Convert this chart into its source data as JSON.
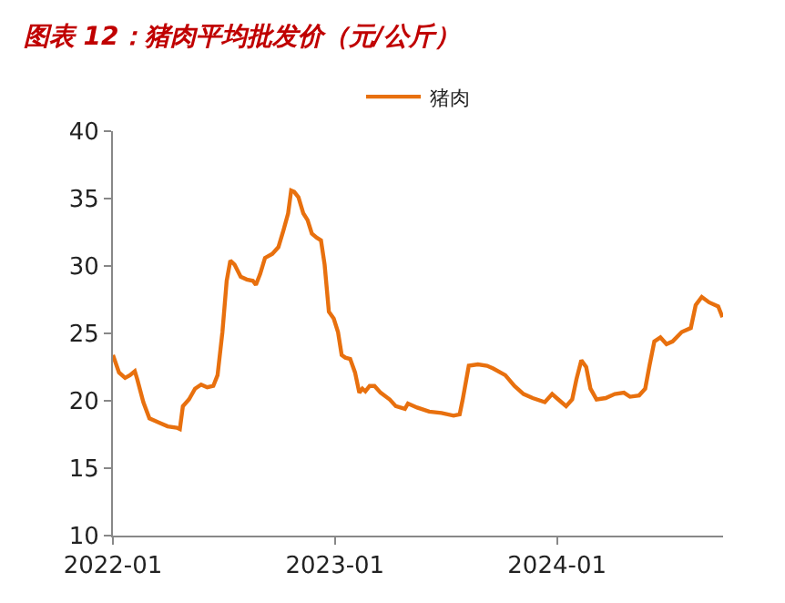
{
  "chart_data": {
    "type": "line",
    "title": "图表 12：猪肉平均批发价（元/公斤）",
    "x": [
      "2022-01-01",
      "2022-01-11",
      "2022-01-21",
      "2022-01-29",
      "2022-02-06",
      "2022-02-10",
      "2022-02-20",
      "2022-03-02",
      "2022-03-17",
      "2022-04-01",
      "2022-04-16",
      "2022-04-21",
      "2022-04-26",
      "2022-05-06",
      "2022-05-16",
      "2022-05-26",
      "2022-06-05",
      "2022-06-15",
      "2022-06-22",
      "2022-06-30",
      "2022-07-07",
      "2022-07-13",
      "2022-07-20",
      "2022-07-30",
      "2022-08-09",
      "2022-08-19",
      "2022-08-24",
      "2022-08-31",
      "2022-09-08",
      "2022-09-20",
      "2022-09-30",
      "2022-10-08",
      "2022-10-16",
      "2022-10-21",
      "2022-10-26",
      "2022-11-02",
      "2022-11-10",
      "2022-11-17",
      "2022-11-24",
      "2022-12-02",
      "2022-12-09",
      "2022-12-15",
      "2022-12-22",
      "2022-12-30",
      "2023-01-06",
      "2023-01-12",
      "2023-01-18",
      "2023-01-26",
      "2023-02-03",
      "2023-02-10",
      "2023-02-15",
      "2023-02-20",
      "2023-02-27",
      "2023-03-07",
      "2023-03-17",
      "2023-04-01",
      "2023-04-11",
      "2023-04-26",
      "2023-05-01",
      "2023-05-16",
      "2023-06-05",
      "2023-06-25",
      "2023-07-15",
      "2023-07-25",
      "2023-07-30",
      "2023-08-09",
      "2023-08-24",
      "2023-09-08",
      "2023-09-18",
      "2023-10-08",
      "2023-10-23",
      "2023-11-07",
      "2023-11-22",
      "2023-12-12",
      "2023-12-24",
      "2024-01-03",
      "2024-01-16",
      "2024-01-26",
      "2024-02-02",
      "2024-02-10",
      "2024-02-18",
      "2024-02-25",
      "2024-03-06",
      "2024-03-21",
      "2024-04-05",
      "2024-04-20",
      "2024-04-30",
      "2024-05-15",
      "2024-05-25",
      "2024-06-01",
      "2024-06-09",
      "2024-06-19",
      "2024-06-29",
      "2024-07-09",
      "2024-07-24",
      "2024-08-08",
      "2024-08-16",
      "2024-08-26",
      "2024-09-07",
      "2024-09-22",
      "2024-09-29"
    ],
    "series": [
      {
        "name": "猪肉",
        "color": "#e8700e",
        "values": [
          23.4,
          22.1,
          21.7,
          21.9,
          22.2,
          21.6,
          19.9,
          18.7,
          18.4,
          18.1,
          18.0,
          17.9,
          19.6,
          20.1,
          20.9,
          21.2,
          21.0,
          21.1,
          21.9,
          25.1,
          28.9,
          30.4,
          30.1,
          29.2,
          29.0,
          28.9,
          28.6,
          29.4,
          30.6,
          30.9,
          31.4,
          32.6,
          33.9,
          35.6,
          35.5,
          35.1,
          33.9,
          33.4,
          32.4,
          32.1,
          31.9,
          30.1,
          26.6,
          26.1,
          25.1,
          23.4,
          23.2,
          23.1,
          22.1,
          20.6,
          20.9,
          20.7,
          21.1,
          21.1,
          20.6,
          20.1,
          19.6,
          19.4,
          19.8,
          19.5,
          19.2,
          19.1,
          18.9,
          19.0,
          20.1,
          22.6,
          22.7,
          22.6,
          22.4,
          21.9,
          21.1,
          20.5,
          20.2,
          19.9,
          20.5,
          20.1,
          19.6,
          20.1,
          21.6,
          23.0,
          22.5,
          20.9,
          20.1,
          20.2,
          20.5,
          20.6,
          20.3,
          20.4,
          20.9,
          22.6,
          24.4,
          24.7,
          24.2,
          24.4,
          25.1,
          25.4,
          27.1,
          27.7,
          27.3,
          27.0,
          26.2
        ]
      }
    ],
    "xlim": [
      "2022-01-01",
      "2024-09-30"
    ],
    "xticks": [
      {
        "value": "2022-01-01",
        "label": "2022-01"
      },
      {
        "value": "2023-01-01",
        "label": "2023-01"
      },
      {
        "value": "2024-01-01",
        "label": "2024-01"
      }
    ],
    "ylim": [
      10,
      40
    ],
    "yticks": [
      10,
      15,
      20,
      25,
      30,
      35,
      40
    ],
    "legend": "top",
    "marker": "none",
    "line_style": "solid"
  }
}
